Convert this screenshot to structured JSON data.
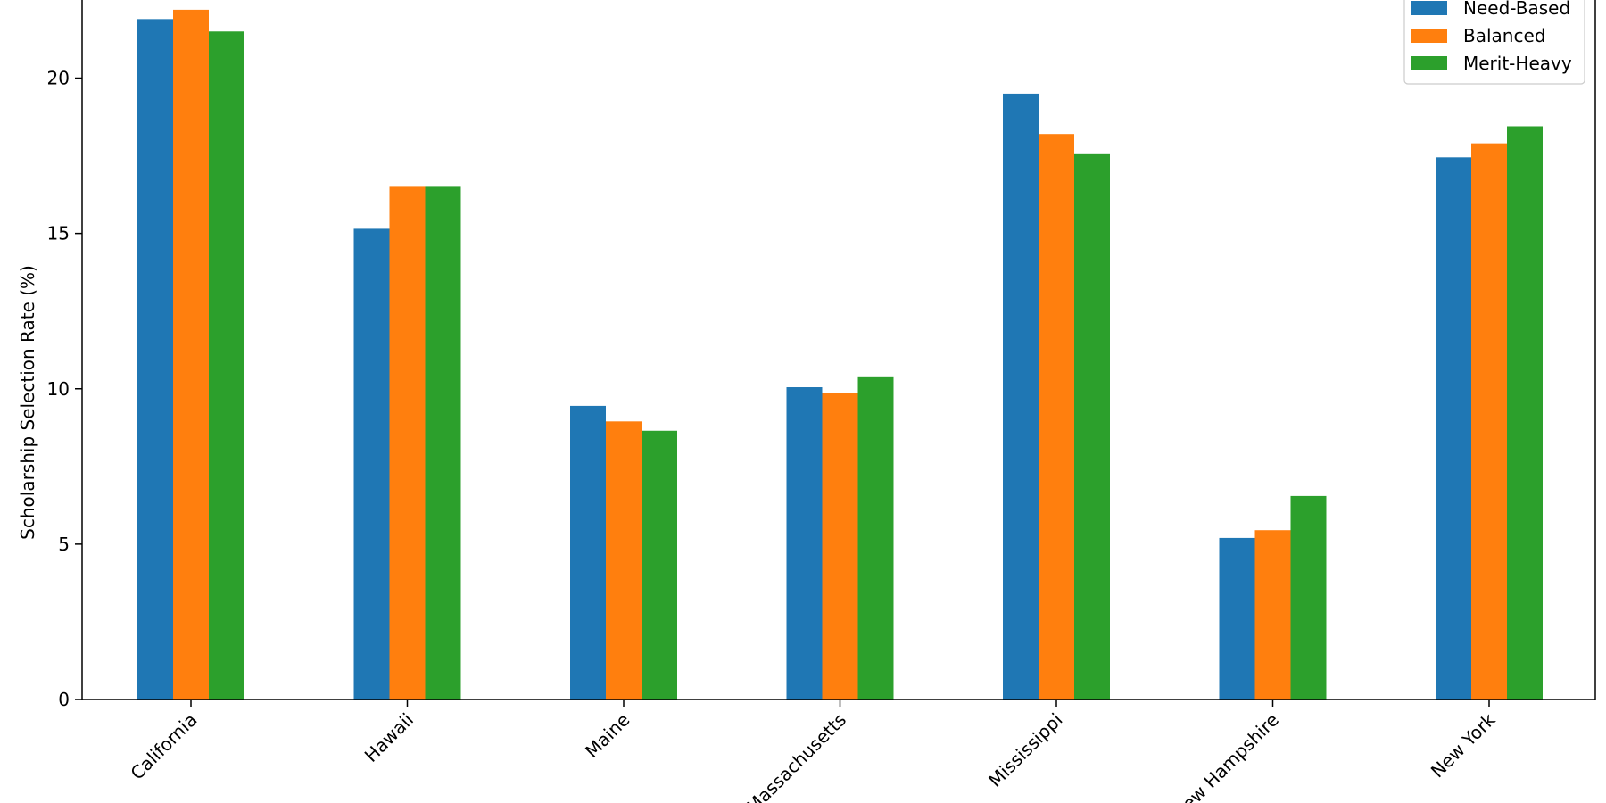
{
  "chart_data": {
    "type": "bar",
    "title": "",
    "xlabel": "",
    "ylabel": "Scholarship Selection Rate (%)",
    "ylim": [
      0,
      22.8
    ],
    "yticks": [
      0,
      5,
      10,
      15,
      20
    ],
    "grid": false,
    "legend_position": "top-right",
    "categories": [
      "California",
      "Hawaii",
      "Maine",
      "Massachusetts",
      "Mississippi",
      "New Hampshire",
      "New York"
    ],
    "series": [
      {
        "name": "Need-Based",
        "color": "#1f77b4",
        "values": [
          21.9,
          15.15,
          9.45,
          10.05,
          19.5,
          5.2,
          17.45
        ]
      },
      {
        "name": "Balanced",
        "color": "#ff7f0e",
        "values": [
          22.2,
          16.5,
          8.95,
          9.85,
          18.2,
          5.45,
          17.9
        ]
      },
      {
        "name": "Merit-Heavy",
        "color": "#2ca02c",
        "values": [
          21.5,
          16.5,
          8.65,
          10.4,
          17.55,
          6.55,
          18.45
        ]
      }
    ]
  }
}
